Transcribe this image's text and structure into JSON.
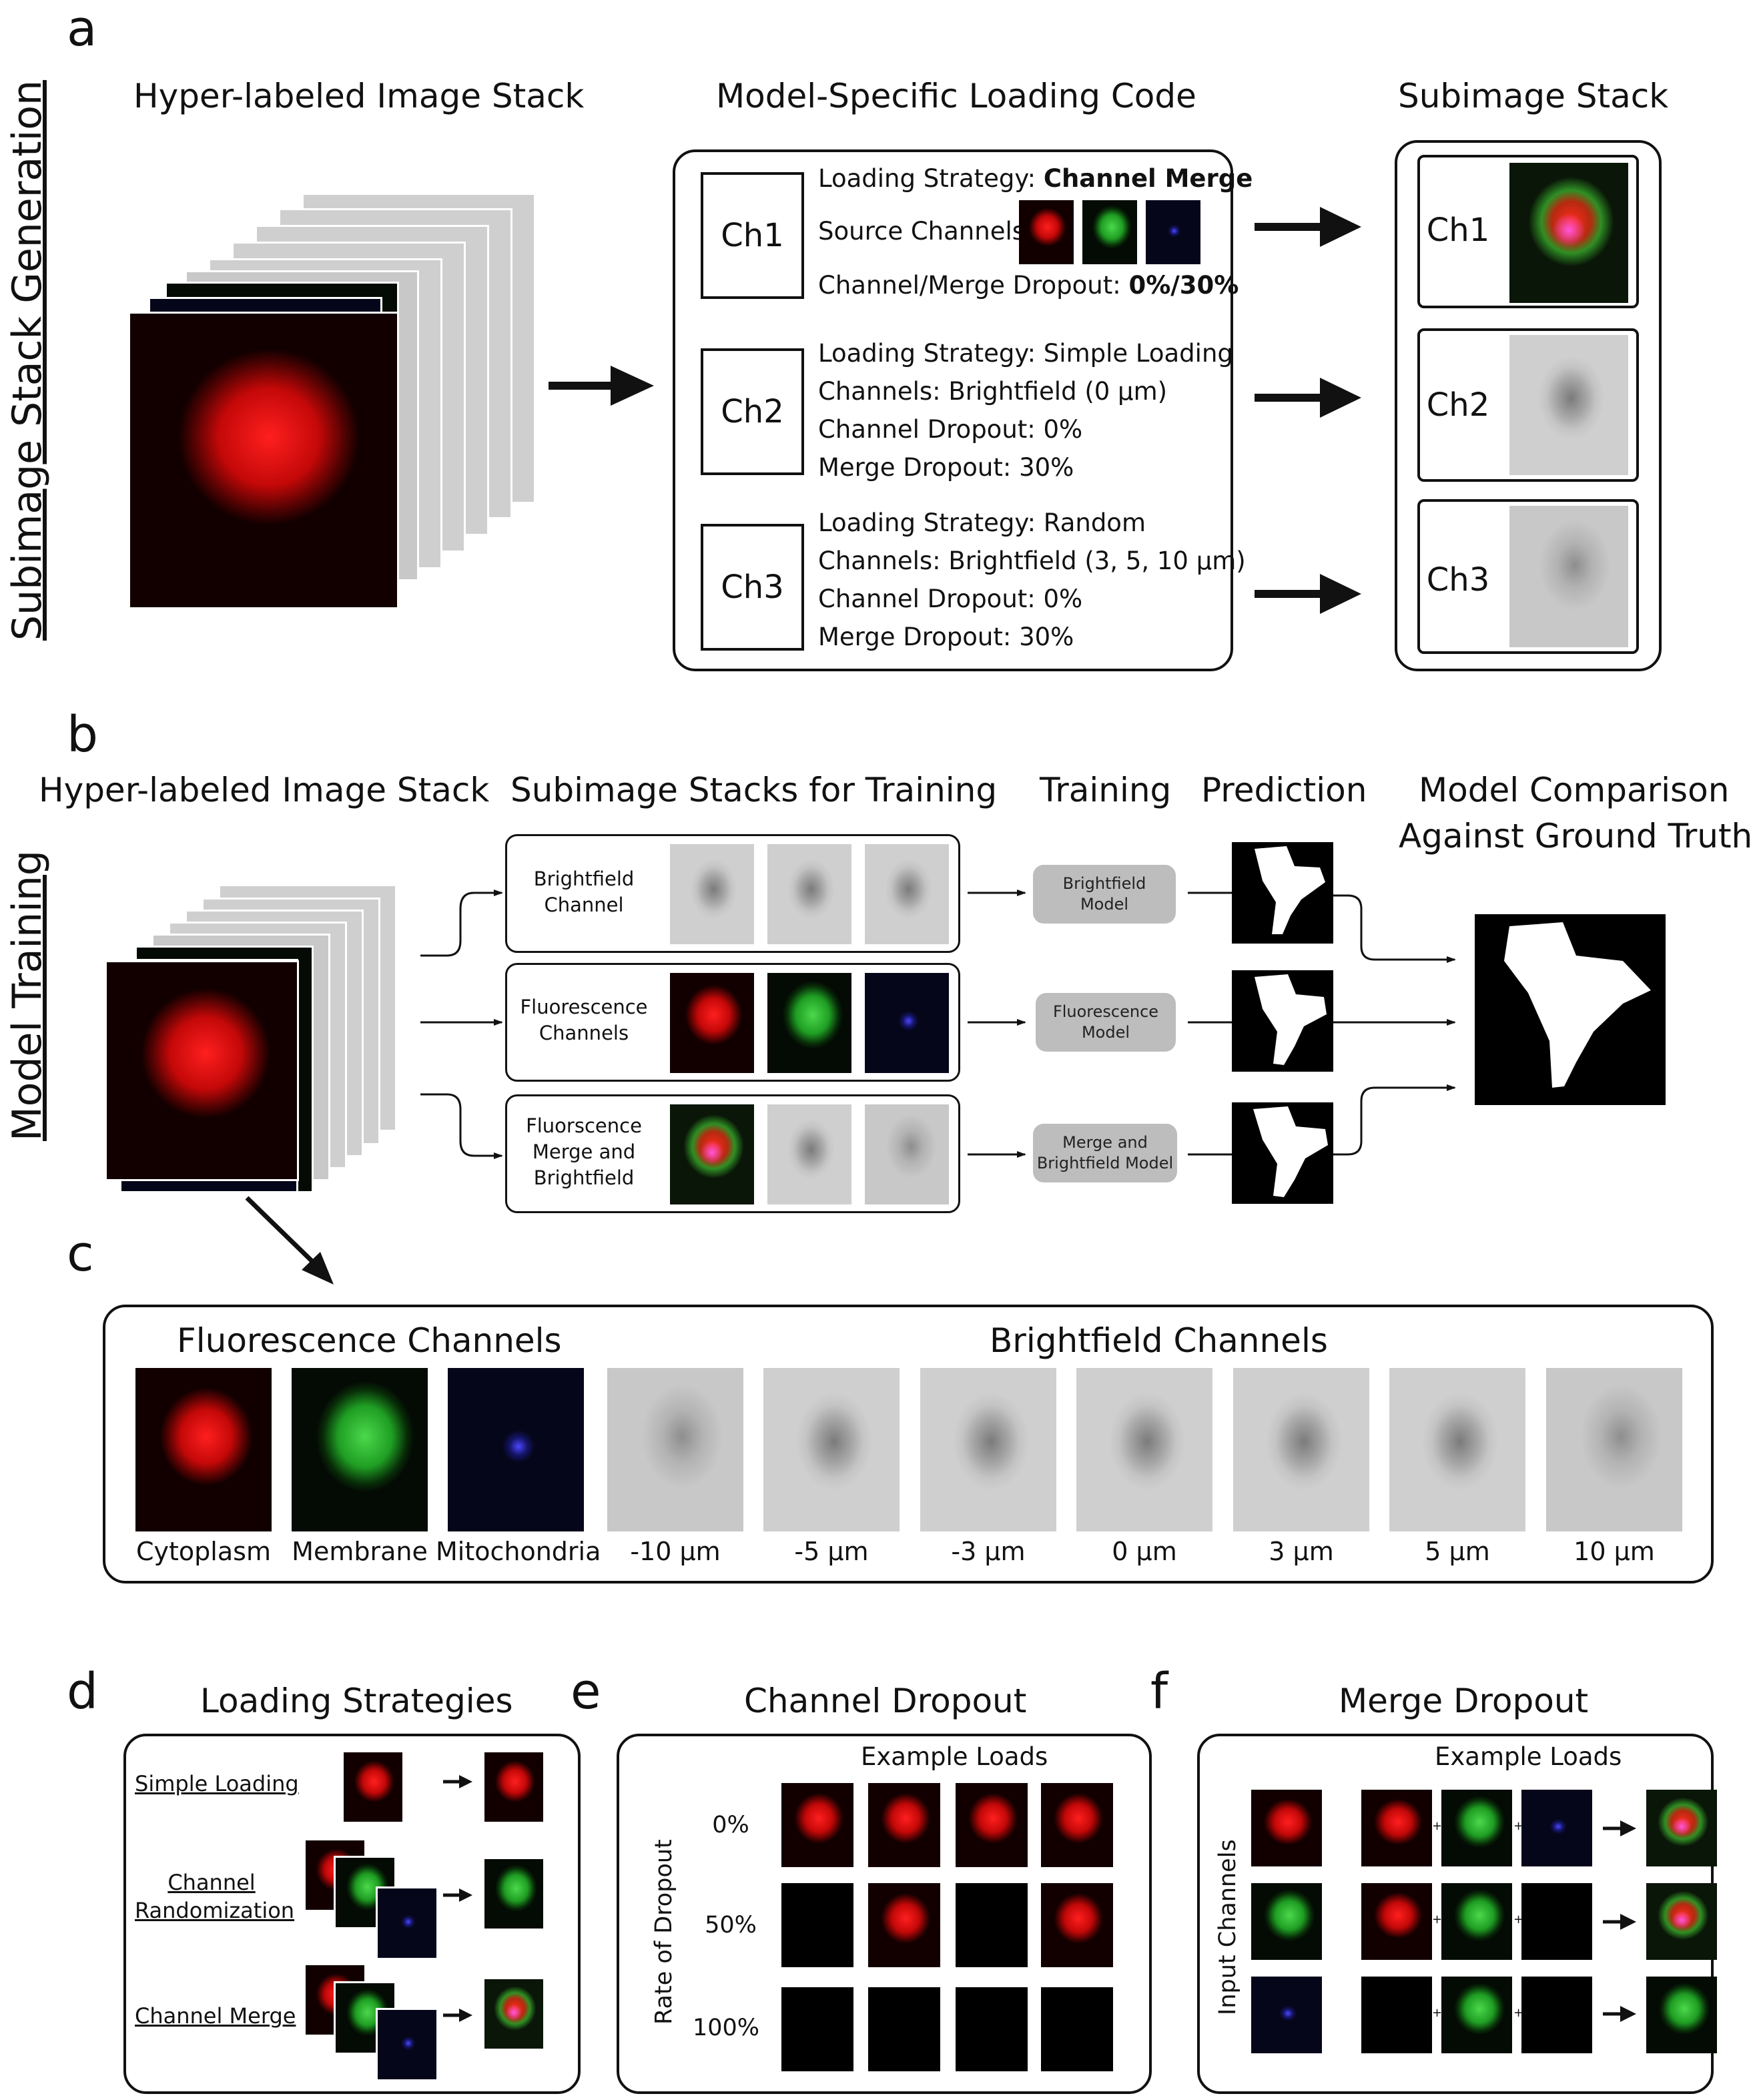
{
  "panels": {
    "a": "a",
    "b": "b",
    "c": "c",
    "d": "d",
    "e": "e",
    "f": "f"
  },
  "side_labels": {
    "a": "Subimage Stack Generation",
    "b": "Model Training"
  },
  "panel_a": {
    "title_left": "Hyper-labeled Image Stack",
    "title_mid": "Model-Specific Loading Code",
    "title_right": "Subimage Stack",
    "ch1": {
      "label": "Ch1",
      "strategy_prefix": "Loading Strategy: ",
      "strategy_value": "Channel Merge",
      "source_label": "Source Channels:",
      "dropout_prefix": "Channel/Merge Dropout: ",
      "dropout_value": "0%/30%"
    },
    "ch2": {
      "label": "Ch2",
      "l1": "Loading Strategy: Simple Loading",
      "l2": "Channels: Brightfield (0 µm)",
      "l3": "Channel Dropout: 0%",
      "l4": "Merge Dropout: 30%"
    },
    "ch3": {
      "label": "Ch3",
      "l1": "Loading Strategy: Random",
      "l2": "Channels: Brightfield (3, 5, 10 µm)",
      "l3": "Channel Dropout: 0%",
      "l4": "Merge Dropout: 30%"
    },
    "out": [
      "Ch1",
      "Ch2",
      "Ch3"
    ]
  },
  "panel_b": {
    "title_stack": "Hyper-labeled Image Stack",
    "title_sub": "Subimage Stacks for Training",
    "title_train": "Training",
    "title_pred": "Prediction",
    "title_cmp_1": "Model Comparison",
    "title_cmp_2": "Against Ground Truth",
    "rows": [
      {
        "l1": "Brightfield",
        "l2": "Channel",
        "l3": "",
        "model_1": "Brightfield",
        "model_2": "Model"
      },
      {
        "l1": "Fluorescence",
        "l2": "Channels",
        "l3": "",
        "model_1": "Fluorescence",
        "model_2": "Model"
      },
      {
        "l1": "Fluorscence",
        "l2": "Merge and",
        "l3": "Brightfield",
        "model_1": "Merge and",
        "model_2": "Brightfield Model"
      }
    ]
  },
  "panel_c": {
    "title_fluor": "Fluorescence Channels",
    "title_bf": "Brightfield Channels",
    "captions": [
      "Cytoplasm",
      "Membrane",
      "Mitochondria",
      "-10 µm",
      "-5 µm",
      "-3 µm",
      "0 µm",
      "3 µm",
      "5 µm",
      "10 µm"
    ]
  },
  "panel_d": {
    "title": "Loading Strategies",
    "items": [
      "Simple Loading",
      "Channel",
      "Randomization",
      "Channel Merge"
    ]
  },
  "panel_e": {
    "title": "Channel Dropout",
    "example": "Example Loads",
    "axis": "Rate of Dropout",
    "rows": [
      "0%",
      "50%",
      "100%"
    ]
  },
  "panel_f": {
    "title": "Merge Dropout",
    "example": "Example Loads",
    "axis": "Input Channels",
    "plus": "+"
  }
}
